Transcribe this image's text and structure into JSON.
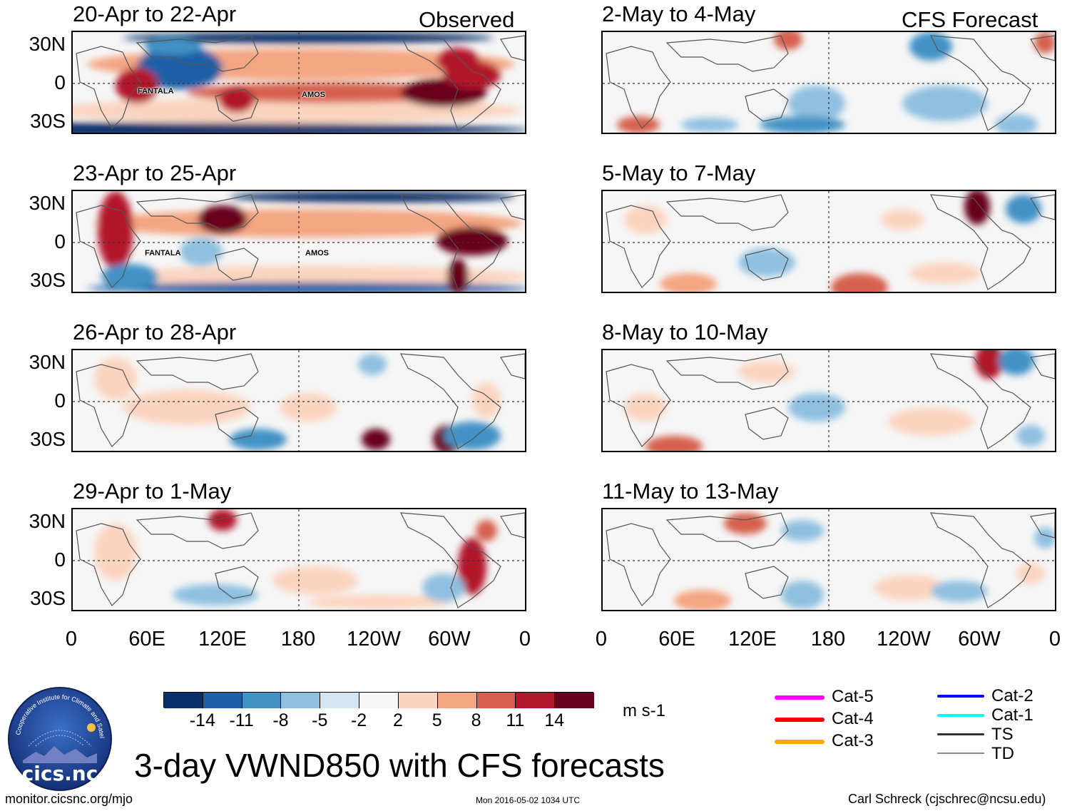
{
  "columns": {
    "left_header": "Observed",
    "right_header": "CFS Forecast"
  },
  "panels": {
    "left": [
      {
        "title": "20-Apr to 22-Apr",
        "storms": [
          "FANTALA",
          "AMOS"
        ]
      },
      {
        "title": "23-Apr to 25-Apr",
        "storms": [
          "FANTALA",
          "AMOS"
        ]
      },
      {
        "title": "26-Apr to 28-Apr",
        "storms": []
      },
      {
        "title": "29-Apr to 1-May",
        "storms": []
      }
    ],
    "right": [
      {
        "title": "2-May to 4-May"
      },
      {
        "title": "5-May to 7-May"
      },
      {
        "title": "8-May to 10-May"
      },
      {
        "title": "11-May to 13-May"
      }
    ]
  },
  "axes": {
    "lat_labels": [
      "30N",
      "0",
      "30S"
    ],
    "lon_labels": [
      "0",
      "60E",
      "120E",
      "180",
      "120W",
      "60W",
      "0"
    ]
  },
  "colorbar": {
    "colors": [
      "#08306b",
      "#1f5fa6",
      "#4292c6",
      "#8fc0e0",
      "#d4e6f3",
      "#f7f7f7",
      "#fbd4c0",
      "#f4a582",
      "#d6604d",
      "#b2182b",
      "#67001f"
    ],
    "ticks": [
      "-14",
      "-11",
      "-8",
      "-5",
      "-2",
      "2",
      "5",
      "8",
      "11",
      "14"
    ],
    "units": "m s-1"
  },
  "legend": {
    "left": [
      {
        "label": "Cat-5",
        "color": "#ff00ff"
      },
      {
        "label": "Cat-4",
        "color": "#ff0000"
      },
      {
        "label": "Cat-3",
        "color": "#ffa500"
      }
    ],
    "right": [
      {
        "label": "Cat-2",
        "color": "#0000ff"
      },
      {
        "label": "Cat-1",
        "color": "#00ffff"
      },
      {
        "label": "TS",
        "color": "#333333"
      },
      {
        "label": "TD",
        "color": "#888888"
      }
    ]
  },
  "logo": {
    "text": "cics.nc",
    "ring_text": "Cooperative Institute for Climate and Satellites"
  },
  "title": "3-day VWND850 with CFS forecasts",
  "footer": {
    "url": "monitor.cicsnc.org/mjo",
    "timestamp": "Mon 2016-05-02 1034 UTC",
    "author": "Carl Schreck (cjschrec@ncsu.edu)"
  }
}
